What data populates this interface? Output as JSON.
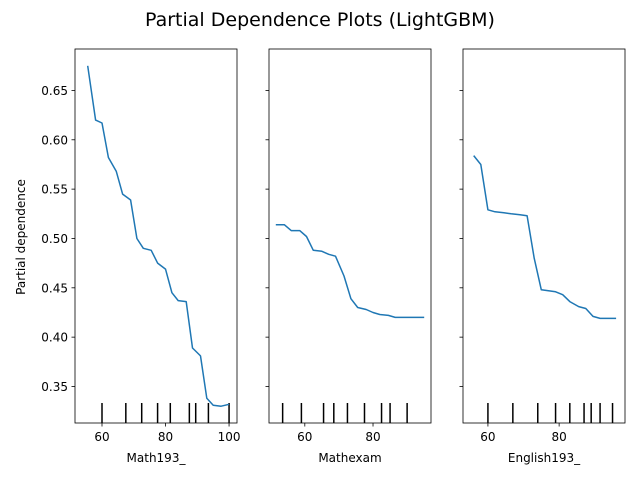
{
  "chart_data": {
    "type": "line",
    "title": "Partial Dependence Plots (LightGBM)",
    "ylabel": "Partial dependence",
    "ylim": [
      0.313,
      0.692
    ],
    "yticks": [
      0.35,
      0.4,
      0.45,
      0.5,
      0.55,
      0.6,
      0.65
    ],
    "ytick_labels": [
      "0.35",
      "0.40",
      "0.45",
      "0.50",
      "0.55",
      "0.60",
      "0.65"
    ],
    "line_color": "#1f77b4",
    "panels": [
      {
        "xlabel": "Math193_",
        "xlim": [
          51.5,
          102.5
        ],
        "xticks": [
          60,
          80,
          100
        ],
        "xtick_labels": [
          "60",
          "80",
          "100"
        ],
        "x": [
          55.5,
          58,
          60,
          62,
          64.5,
          66.5,
          69,
          71,
          73,
          75.5,
          77.5,
          80,
          82,
          84,
          86.5,
          88.5,
          91,
          93,
          95,
          97.5,
          100
        ],
        "y": [
          0.675,
          0.62,
          0.617,
          0.582,
          0.568,
          0.545,
          0.539,
          0.5,
          0.49,
          0.488,
          0.475,
          0.469,
          0.445,
          0.437,
          0.436,
          0.389,
          0.381,
          0.338,
          0.331,
          0.33,
          0.332
        ],
        "deciles": [
          60,
          67.5,
          72.5,
          77.5,
          81.5,
          87.5,
          89.5,
          93.5,
          100
        ]
      },
      {
        "xlabel": "Mathexam",
        "xlim": [
          49.5,
          97.0
        ],
        "xticks": [
          60,
          80
        ],
        "xtick_labels": [
          "60",
          "80"
        ],
        "x": [
          51.5,
          54,
          56,
          58.5,
          60.5,
          62.5,
          65,
          67,
          69,
          71.5,
          73.5,
          75.5,
          78,
          80,
          82,
          84.5,
          86.5,
          89,
          91,
          95
        ],
        "y": [
          0.514,
          0.514,
          0.508,
          0.508,
          0.502,
          0.488,
          0.487,
          0.484,
          0.482,
          0.462,
          0.439,
          0.43,
          0.428,
          0.425,
          0.423,
          0.422,
          0.42,
          0.42,
          0.42,
          0.42
        ],
        "deciles": [
          53.5,
          59,
          65.5,
          68.5,
          72.5,
          77.5,
          82.5,
          85,
          90
        ]
      },
      {
        "xlabel": "English193_",
        "xlim": [
          53.0,
          98.5
        ],
        "xticks": [
          60,
          80
        ],
        "xtick_labels": [
          "60",
          "80"
        ],
        "x": [
          56,
          58,
          60,
          62,
          64.5,
          66.5,
          69,
          71,
          73,
          75,
          77,
          79,
          81,
          83,
          85.5,
          87.5,
          89.5,
          91.5,
          94,
          96
        ],
        "y": [
          0.584,
          0.575,
          0.529,
          0.527,
          0.526,
          0.525,
          0.524,
          0.523,
          0.48,
          0.448,
          0.447,
          0.446,
          0.443,
          0.436,
          0.431,
          0.429,
          0.421,
          0.419,
          0.419,
          0.419
        ],
        "deciles": [
          60,
          67,
          74,
          79,
          83,
          87,
          89,
          91.5,
          95
        ]
      }
    ]
  }
}
